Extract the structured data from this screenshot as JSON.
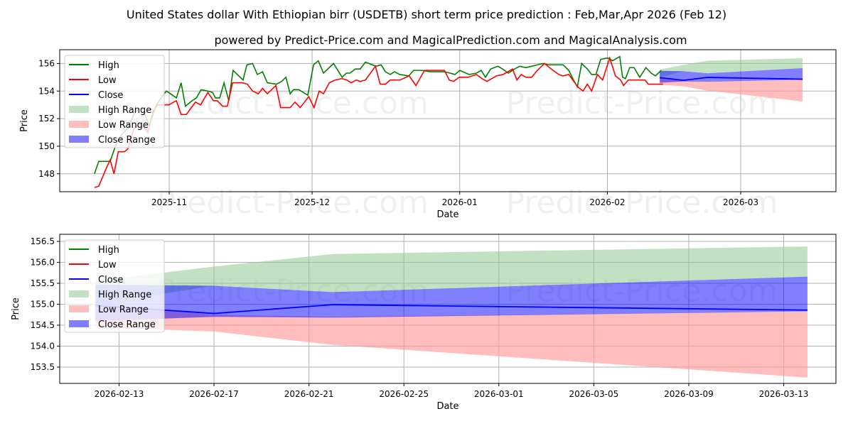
{
  "title": "United States dollar With Ethiopian birr (USDETB) short term price prediction : Feb,Mar,Apr 2026 (Feb 12)",
  "subtitle": "powered by Predict-Price.com and MagicalPrediction.com and MagicalAnalysis.com",
  "watermark": "Predict-Price.com",
  "colors": {
    "high": "#008000",
    "low": "#ff0000",
    "close": "#0000ff",
    "high_range": "#8fc98f",
    "low_range": "#ff9a9a",
    "close_range": "#0000ff"
  },
  "chart_data": [
    {
      "type": "line",
      "xlabel": "Date",
      "ylabel": "Price",
      "x_unit": "days since 2025-11-01",
      "ylim": [
        146.7,
        157.0
      ],
      "xlim": [
        -23,
        140
      ],
      "yticks": [
        148,
        150,
        152,
        154,
        156
      ],
      "xticks": [
        {
          "day": 0,
          "label": "2025-11"
        },
        {
          "day": 30,
          "label": "2025-12"
        },
        {
          "day": 61,
          "label": "2026-01"
        },
        {
          "day": 92,
          "label": "2026-02"
        },
        {
          "day": 120,
          "label": "2026-03"
        }
      ],
      "legend": [
        "High",
        "Low",
        "Close",
        "High Range",
        "Low Range",
        "Close Range"
      ],
      "legend_position": "upper-left",
      "high": [
        [
          -15.7,
          148.0
        ],
        [
          -14.8,
          148.9
        ],
        [
          -13.1,
          148.9
        ],
        [
          -12.4,
          148.9
        ],
        [
          -11.3,
          150.0
        ],
        [
          -10.1,
          150.8
        ],
        [
          -8.7,
          151.3
        ],
        [
          -7.2,
          152.5
        ],
        [
          -5.7,
          152.8
        ],
        [
          -4.2,
          151.5
        ],
        [
          -2.7,
          153.0
        ],
        [
          -1.5,
          153.6
        ],
        [
          -0.6,
          154.0
        ],
        [
          0.7,
          153.7
        ],
        [
          1.5,
          153.5
        ],
        [
          2.5,
          154.6
        ],
        [
          3.4,
          152.9
        ],
        [
          4.8,
          153.3
        ],
        [
          5.7,
          153.5
        ],
        [
          6.7,
          154.1
        ],
        [
          8.1,
          154.0
        ],
        [
          9.1,
          153.9
        ],
        [
          9.7,
          153.5
        ],
        [
          10.6,
          153.5
        ],
        [
          11.5,
          154.6
        ],
        [
          12.5,
          153.3
        ],
        [
          13.4,
          155.5
        ],
        [
          15.5,
          154.8
        ],
        [
          16.3,
          155.9
        ],
        [
          17.5,
          156.0
        ],
        [
          18.5,
          155.2
        ],
        [
          19.6,
          155.4
        ],
        [
          20.6,
          154.6
        ],
        [
          22.5,
          154.5
        ],
        [
          23.6,
          154.7
        ],
        [
          24.5,
          155.0
        ],
        [
          25.4,
          153.8
        ],
        [
          26.1,
          154.1
        ],
        [
          27.2,
          154.1
        ],
        [
          29.1,
          153.7
        ],
        [
          30.3,
          155.9
        ],
        [
          31.3,
          156.2
        ],
        [
          32.4,
          155.3
        ],
        [
          34.5,
          156.0
        ],
        [
          36.3,
          155.0
        ],
        [
          37.2,
          155.3
        ],
        [
          37.9,
          155.3
        ],
        [
          39.1,
          155.6
        ],
        [
          40.1,
          155.6
        ],
        [
          41.2,
          156.1
        ],
        [
          43.4,
          155.8
        ],
        [
          44.5,
          155.9
        ],
        [
          45.4,
          155.4
        ],
        [
          46.4,
          155.2
        ],
        [
          47.3,
          155.4
        ],
        [
          48.4,
          155.2
        ],
        [
          50.3,
          155.1
        ],
        [
          51.3,
          155.5
        ],
        [
          53.1,
          155.5
        ],
        [
          54.8,
          155.4
        ],
        [
          57.8,
          155.4
        ],
        [
          59.0,
          155.3
        ],
        [
          60.0,
          155.2
        ],
        [
          61.0,
          155.5
        ],
        [
          63.0,
          155.2
        ],
        [
          64.5,
          155.3
        ],
        [
          65.5,
          155.5
        ],
        [
          66.4,
          155.0
        ],
        [
          67.5,
          155.6
        ],
        [
          69.0,
          155.8
        ],
        [
          70.0,
          155.6
        ],
        [
          71.2,
          155.3
        ],
        [
          72.5,
          155.6
        ],
        [
          73.6,
          155.8
        ],
        [
          74.9,
          155.7
        ],
        [
          76.1,
          155.8
        ],
        [
          77.3,
          155.9
        ],
        [
          78.5,
          156.0
        ],
        [
          79.7,
          155.9
        ],
        [
          80.6,
          155.9
        ],
        [
          81.8,
          155.9
        ],
        [
          82.7,
          155.9
        ],
        [
          83.9,
          155.5
        ],
        [
          84.9,
          154.8
        ],
        [
          85.7,
          154.3
        ],
        [
          86.6,
          156.0
        ],
        [
          87.8,
          155.6
        ],
        [
          88.7,
          155.2
        ],
        [
          89.6,
          155.2
        ],
        [
          90.6,
          156.3
        ],
        [
          92.1,
          156.4
        ],
        [
          93.1,
          156.2
        ],
        [
          94.6,
          156.5
        ],
        [
          95.2,
          155.0
        ],
        [
          95.8,
          154.9
        ],
        [
          96.7,
          155.7
        ],
        [
          97.6,
          155.7
        ],
        [
          98.8,
          155.0
        ],
        [
          100.1,
          155.7
        ],
        [
          101.2,
          155.3
        ],
        [
          102.1,
          155.1
        ],
        [
          103.3,
          155.5
        ]
      ],
      "low": [
        [
          -15.7,
          147.0
        ],
        [
          -14.8,
          147.1
        ],
        [
          -13.1,
          148.5
        ],
        [
          -12.4,
          149.0
        ],
        [
          -11.6,
          148.0
        ],
        [
          -10.7,
          149.6
        ],
        [
          -9.4,
          149.6
        ],
        [
          -8.7,
          149.8
        ],
        [
          -7.5,
          151.2
        ],
        [
          -6.4,
          151.6
        ],
        [
          -5.4,
          151.4
        ],
        [
          -4.5,
          151.0
        ],
        [
          -3.4,
          152.5
        ],
        [
          -2.4,
          153.0
        ],
        [
          -1.5,
          153.0
        ],
        [
          -0.1,
          153.0
        ],
        [
          1.5,
          153.3
        ],
        [
          2.5,
          152.3
        ],
        [
          3.6,
          152.3
        ],
        [
          5.5,
          153.2
        ],
        [
          6.6,
          153.0
        ],
        [
          8.1,
          153.9
        ],
        [
          9.3,
          153.3
        ],
        [
          10.1,
          153.3
        ],
        [
          11.2,
          152.9
        ],
        [
          12.2,
          152.9
        ],
        [
          13.3,
          154.6
        ],
        [
          15.4,
          154.6
        ],
        [
          16.4,
          154.5
        ],
        [
          17.5,
          154.0
        ],
        [
          18.7,
          153.8
        ],
        [
          19.6,
          154.2
        ],
        [
          20.6,
          153.8
        ],
        [
          22.4,
          154.4
        ],
        [
          23.4,
          152.8
        ],
        [
          25.4,
          152.8
        ],
        [
          26.4,
          153.2
        ],
        [
          27.5,
          152.8
        ],
        [
          29.3,
          153.6
        ],
        [
          30.4,
          152.8
        ],
        [
          31.5,
          154.0
        ],
        [
          32.4,
          153.8
        ],
        [
          33.6,
          154.6
        ],
        [
          34.8,
          154.8
        ],
        [
          36.3,
          154.9
        ],
        [
          37.3,
          154.8
        ],
        [
          38.2,
          154.6
        ],
        [
          39.3,
          154.8
        ],
        [
          40.1,
          154.7
        ],
        [
          41.2,
          154.8
        ],
        [
          43.3,
          155.8
        ],
        [
          44.3,
          154.5
        ],
        [
          45.4,
          154.5
        ],
        [
          46.4,
          154.8
        ],
        [
          48.4,
          154.8
        ],
        [
          50.4,
          155.1
        ],
        [
          51.8,
          154.4
        ],
        [
          53.6,
          155.5
        ],
        [
          57.8,
          155.5
        ],
        [
          58.8,
          154.8
        ],
        [
          59.7,
          154.7
        ],
        [
          60.9,
          155.0
        ],
        [
          62.7,
          155.0
        ],
        [
          64.5,
          155.2
        ],
        [
          65.7,
          154.9
        ],
        [
          66.7,
          154.7
        ],
        [
          68.7,
          155.1
        ],
        [
          70.1,
          155.2
        ],
        [
          72.1,
          155.6
        ],
        [
          73.0,
          154.8
        ],
        [
          73.9,
          155.2
        ],
        [
          74.9,
          155.0
        ],
        [
          76.1,
          155.0
        ],
        [
          77.3,
          155.5
        ],
        [
          78.8,
          156.0
        ],
        [
          80.6,
          155.5
        ],
        [
          81.8,
          155.2
        ],
        [
          82.7,
          155.1
        ],
        [
          83.9,
          155.2
        ],
        [
          85.8,
          154.3
        ],
        [
          86.9,
          154.0
        ],
        [
          87.8,
          154.5
        ],
        [
          88.7,
          154.0
        ],
        [
          89.9,
          155.2
        ],
        [
          91.0,
          154.8
        ],
        [
          92.5,
          156.4
        ],
        [
          93.7,
          155.1
        ],
        [
          94.8,
          154.8
        ],
        [
          95.4,
          154.4
        ],
        [
          96.4,
          154.8
        ],
        [
          98.8,
          154.8
        ],
        [
          99.9,
          154.8
        ],
        [
          100.6,
          154.5
        ],
        [
          103.7,
          154.5
        ]
      ]
    },
    {
      "type": "line",
      "xlabel": "Date",
      "ylabel": "Price",
      "x_unit": "days since 2026-02-13",
      "ylim": [
        153.11,
        156.67
      ],
      "xlim": [
        -2.5,
        30.2
      ],
      "yticks": [
        153.5,
        154.0,
        154.5,
        155.0,
        155.5,
        156.0,
        156.5
      ],
      "xticks": [
        {
          "day": 0,
          "label": "2026-02-13"
        },
        {
          "day": 4,
          "label": "2026-02-17"
        },
        {
          "day": 8,
          "label": "2026-02-21"
        },
        {
          "day": 12,
          "label": "2026-02-25"
        },
        {
          "day": 16,
          "label": "2026-03-01"
        },
        {
          "day": 20,
          "label": "2026-03-05"
        },
        {
          "day": 24,
          "label": "2026-03-09"
        },
        {
          "day": 28,
          "label": "2026-03-13"
        }
      ],
      "legend": [
        "High",
        "Low",
        "Close",
        "High Range",
        "Low Range",
        "Close Range"
      ],
      "legend_position": "upper-left"
    }
  ],
  "forecast": {
    "dates": [
      "2026-02-12",
      "2026-02-17",
      "2026-02-22",
      "2026-03-14"
    ],
    "day_from_2025_11_01": [
      103,
      108,
      113,
      133
    ],
    "day_from_2026_02_13": [
      -1,
      4,
      9,
      29
    ],
    "close": [
      154.97,
      154.78,
      154.99,
      154.86
    ],
    "close_range": [
      [
        154.6,
        155.47
      ],
      [
        154.7,
        155.44
      ],
      [
        154.68,
        155.29
      ],
      [
        154.83,
        155.66
      ]
    ],
    "high_range": [
      [
        155.0,
        155.56
      ],
      [
        155.44,
        155.9
      ],
      [
        155.29,
        156.2
      ],
      [
        155.66,
        156.38
      ]
    ],
    "low_range": [
      [
        154.45,
        155.0
      ],
      [
        154.35,
        154.75
      ],
      [
        154.03,
        154.7
      ],
      [
        153.25,
        154.83
      ]
    ]
  }
}
